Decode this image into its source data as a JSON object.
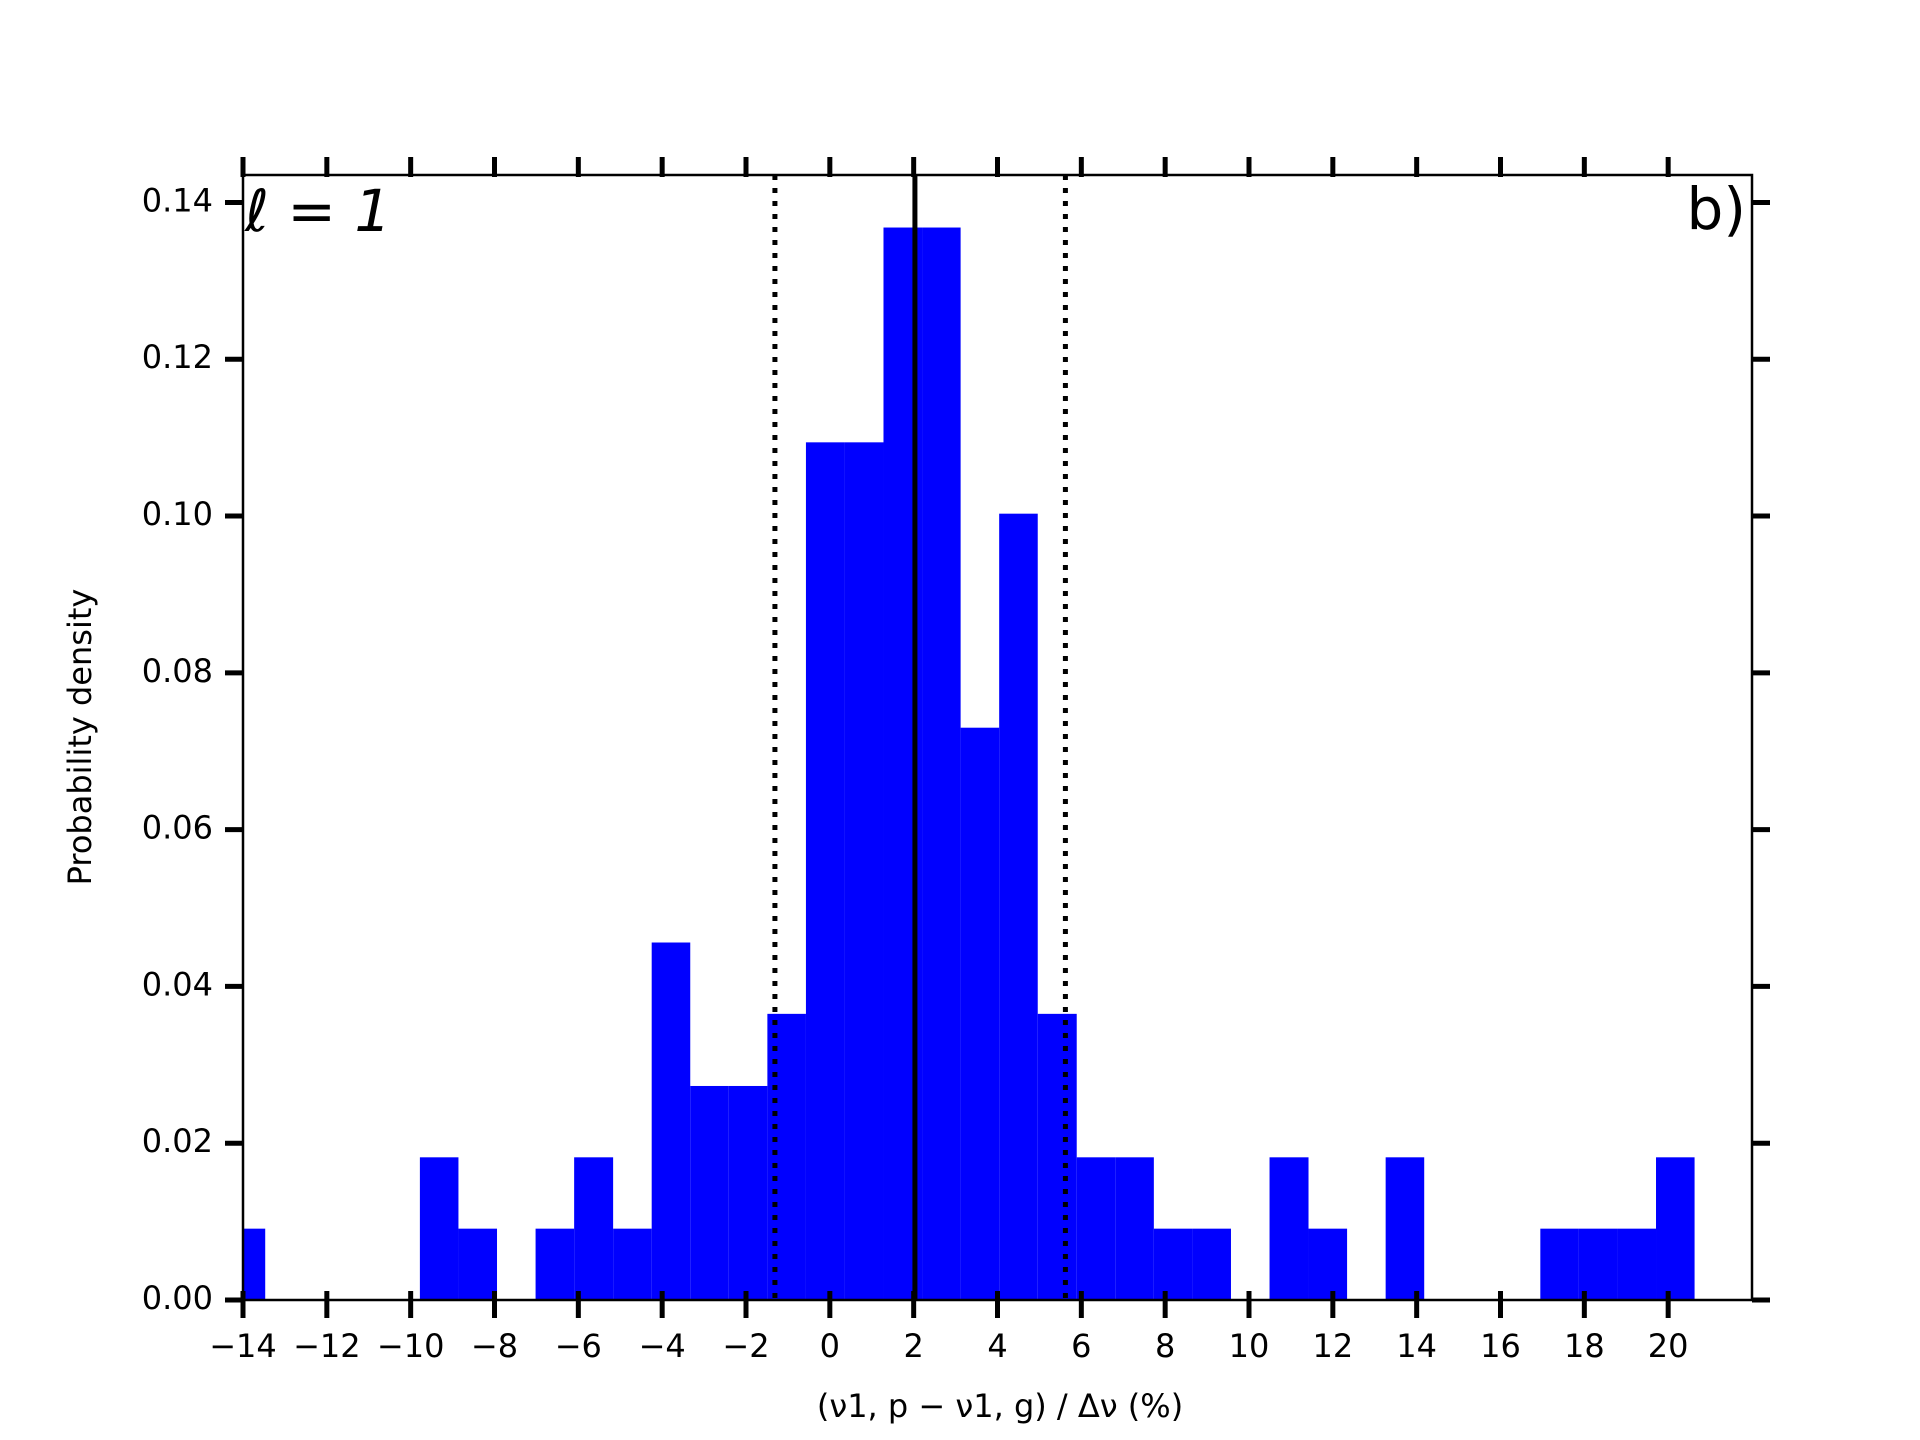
{
  "chart_data": {
    "type": "histogram",
    "bins": [
      -14.39,
      -13.47,
      -12.55,
      -11.63,
      -10.7,
      -9.78,
      -8.86,
      -7.94,
      -7.02,
      -6.1,
      -5.17,
      -4.25,
      -3.33,
      -2.41,
      -1.49,
      -0.57,
      0.36,
      1.28,
      2.2,
      3.12,
      4.04,
      4.96,
      5.89,
      6.81,
      7.73,
      8.65,
      9.57,
      10.49,
      11.42,
      12.34,
      13.26,
      14.18,
      15.1,
      16.02,
      16.95,
      17.87,
      18.79,
      19.71,
      20.63
    ],
    "values": [
      0.0091,
      0,
      0,
      0,
      0,
      0.0182,
      0.0091,
      0,
      0.0091,
      0.0182,
      0.0091,
      0.0456,
      0.0273,
      0.0273,
      0.0365,
      0.1094,
      0.1094,
      0.1368,
      0.1368,
      0.073,
      0.1003,
      0.0365,
      0.0182,
      0.0182,
      0.0091,
      0.0091,
      0,
      0.0182,
      0.0091,
      0,
      0.0182,
      0,
      0,
      0,
      0.0091,
      0.0091,
      0.0091,
      0.0182
    ],
    "color": "#0000ff",
    "xlabel": "(ν1, p − ν1, g) / Δν (%)",
    "ylabel": "Probability density",
    "xlim": [
      -14,
      22
    ],
    "ylim": [
      0,
      0.1435
    ],
    "xticks": [
      {
        "value": -14,
        "label": "−14"
      },
      {
        "value": -12,
        "label": "−12"
      },
      {
        "value": -10,
        "label": "−10"
      },
      {
        "value": -8,
        "label": "−8"
      },
      {
        "value": -6,
        "label": "−6"
      },
      {
        "value": -4,
        "label": "−4"
      },
      {
        "value": -2,
        "label": "−2"
      },
      0,
      2,
      4,
      6,
      8,
      10,
      12,
      14,
      16,
      18,
      20
    ],
    "yticks": [
      {
        "value": 0,
        "label": "0.00"
      },
      {
        "value": 0.02,
        "label": "0.02"
      },
      {
        "value": 0.04,
        "label": "0.04"
      },
      {
        "value": 0.06,
        "label": "0.06"
      },
      {
        "value": 0.08,
        "label": "0.08"
      },
      {
        "value": 0.1,
        "label": "0.10"
      },
      {
        "value": 0.12,
        "label": "0.12"
      },
      {
        "value": 0.14,
        "label": "0.14"
      }
    ],
    "vlines": [
      {
        "value": -1.31,
        "style": "dotted"
      },
      {
        "value": 2.03,
        "style": "solid"
      },
      {
        "value": 5.62,
        "style": "dotted"
      }
    ],
    "annotations": [
      {
        "text": "ℓ = 1",
        "color": "#0000ff"
      },
      {
        "text": "b)",
        "color": "#000000"
      }
    ],
    "grid": false
  }
}
